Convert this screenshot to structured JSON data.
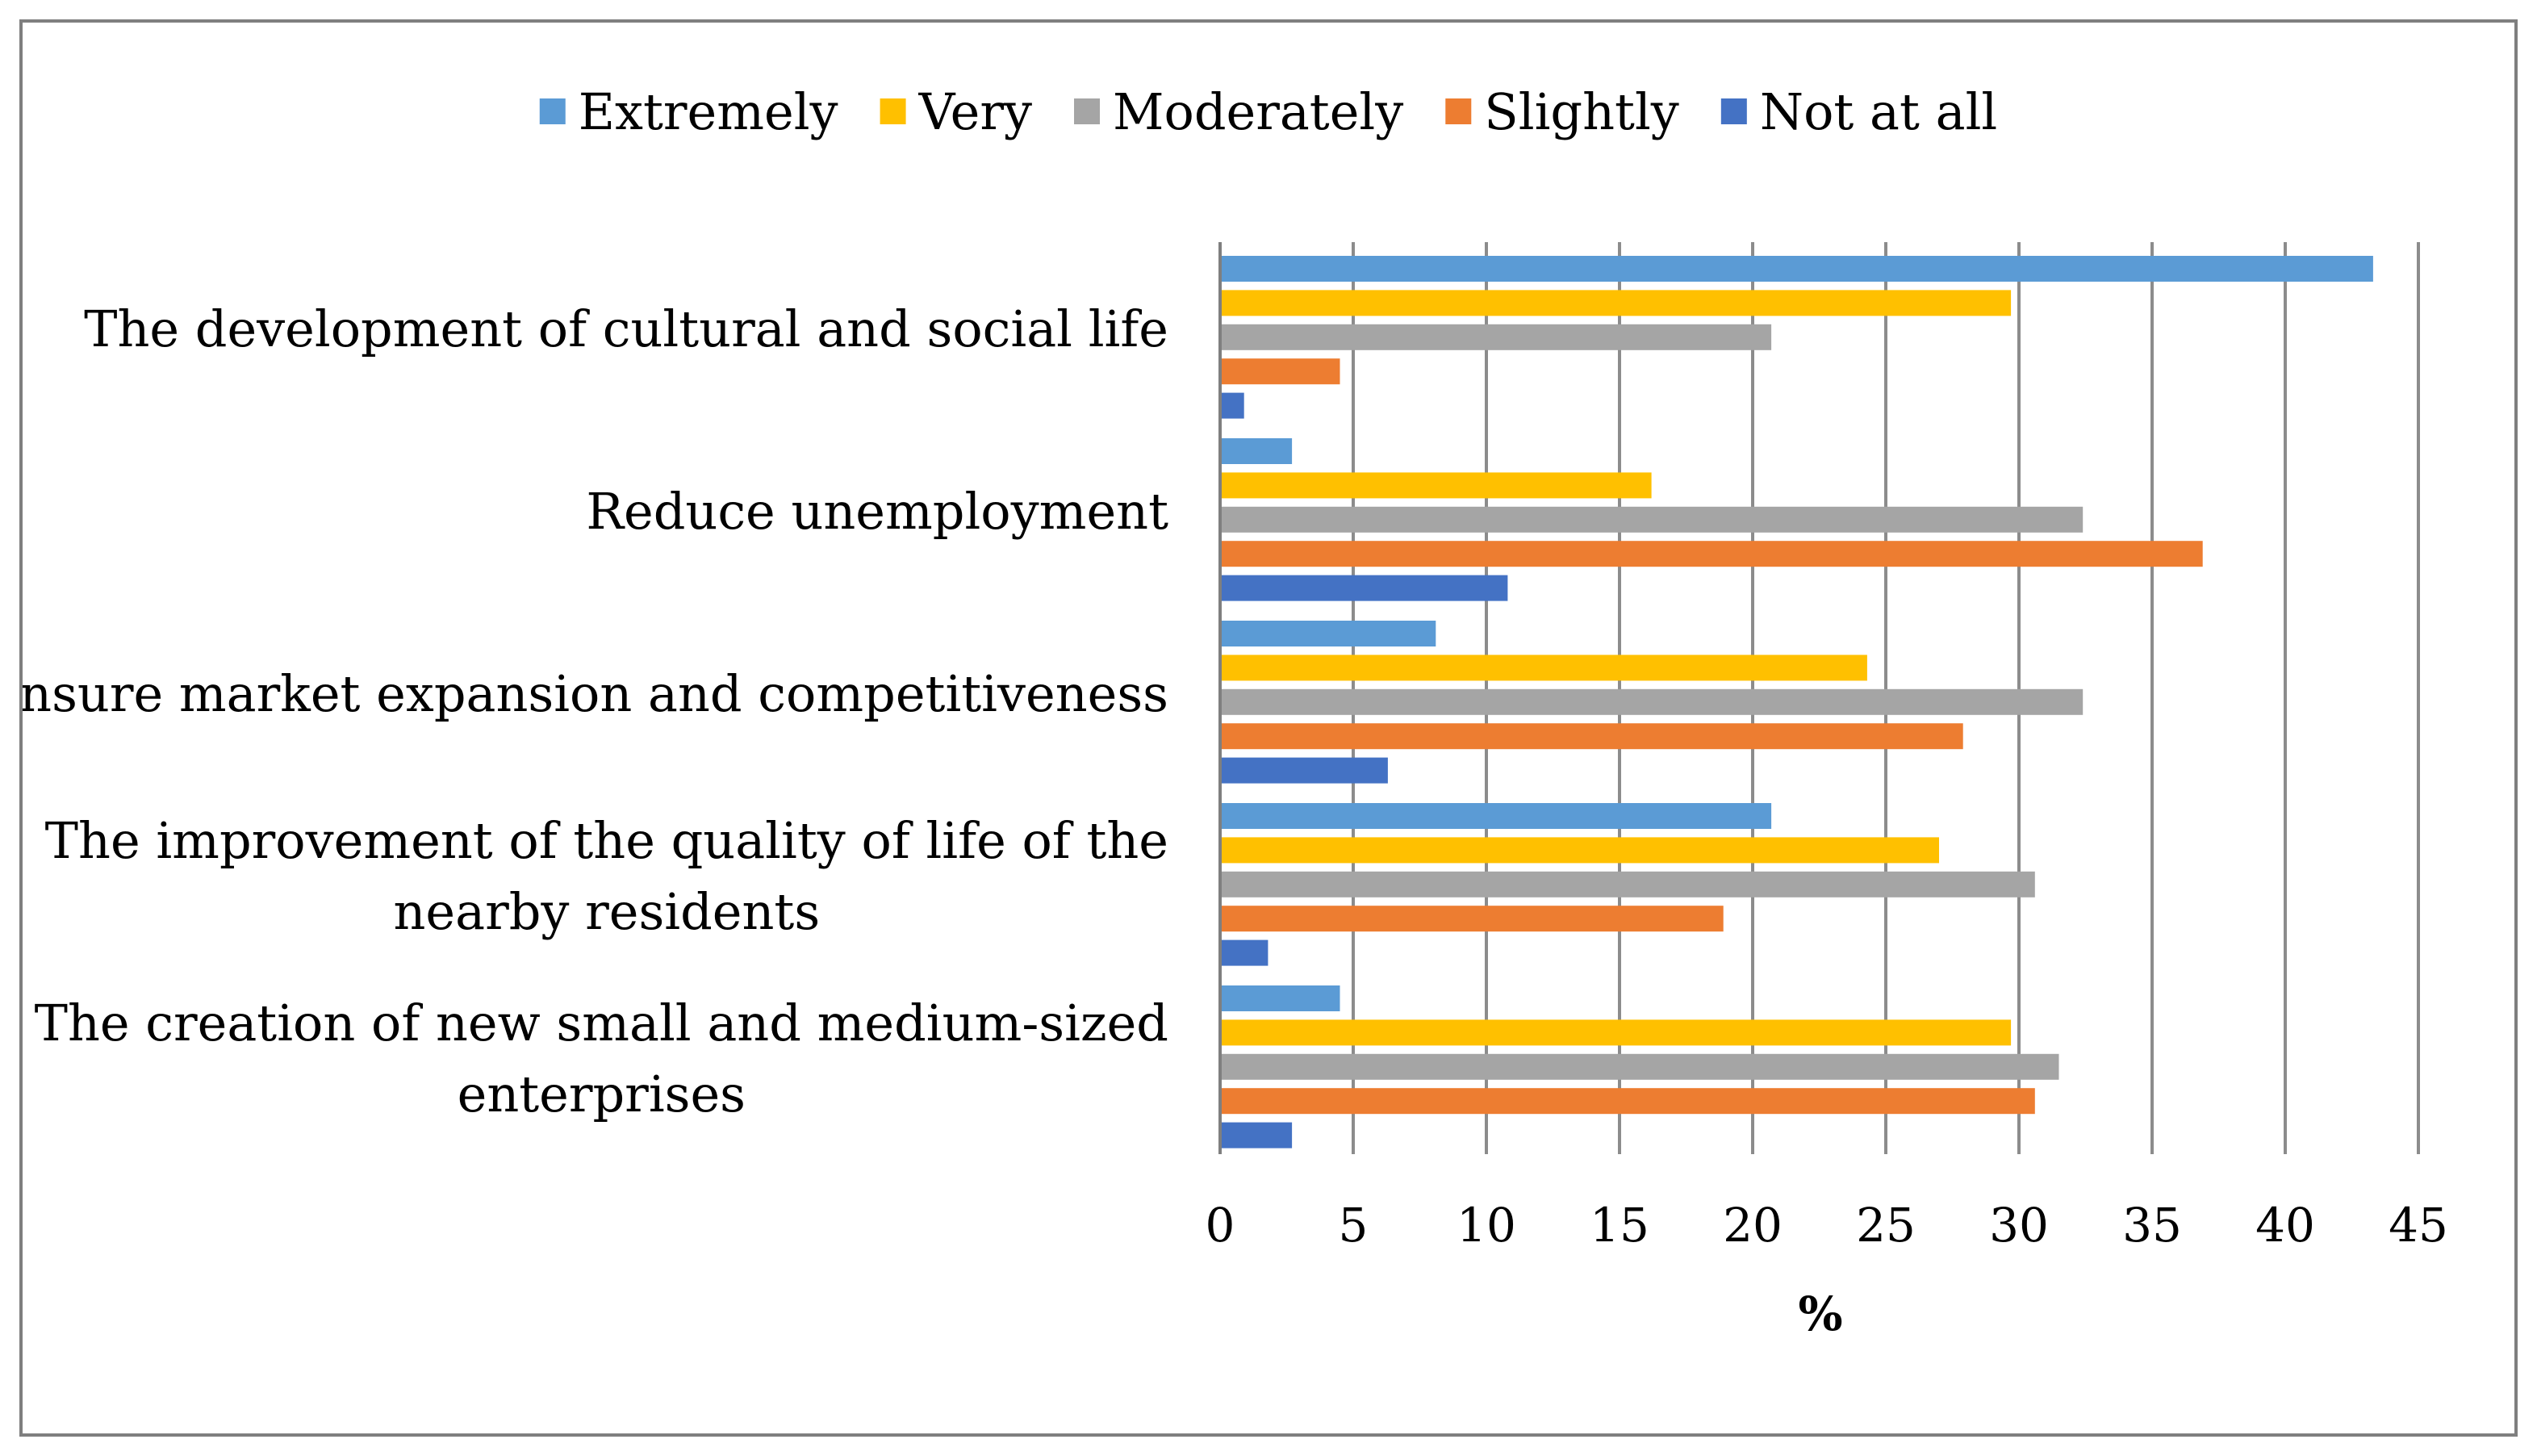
{
  "chart_data": {
    "type": "bar",
    "orientation": "horizontal",
    "title": "",
    "xlabel": "%",
    "ylabel": "",
    "xlim": [
      0,
      45
    ],
    "xticks": [
      0,
      5,
      10,
      15,
      20,
      25,
      30,
      35,
      40,
      45
    ],
    "grid": "vertical",
    "legend_position": "top",
    "categories": [
      {
        "lines": [
          "The development of cultural and social life"
        ]
      },
      {
        "lines": [
          "Reduce unemployment"
        ]
      },
      {
        "lines": [
          "Ensure market expansion and competitiveness"
        ]
      },
      {
        "lines": [
          "The improvement of the quality of life of the",
          "nearby residents"
        ]
      },
      {
        "lines": [
          "The creation of new small and medium-sized",
          "enterprises"
        ]
      }
    ],
    "series": [
      {
        "name": "Extremely",
        "color": "#5b9bd5",
        "values": [
          43.3,
          2.7,
          8.1,
          20.7,
          4.5
        ]
      },
      {
        "name": "Very",
        "color": "#ffc000",
        "values": [
          29.7,
          16.2,
          24.3,
          27.0,
          29.7
        ]
      },
      {
        "name": "Moderately",
        "color": "#a5a5a5",
        "values": [
          20.7,
          32.4,
          32.4,
          30.6,
          31.5
        ]
      },
      {
        "name": "Slightly",
        "color": "#ed7d31",
        "values": [
          4.5,
          36.9,
          27.9,
          18.9,
          30.6
        ]
      },
      {
        "name": "Not at all",
        "color": "#4472c4",
        "values": [
          0.9,
          10.8,
          6.3,
          1.8,
          2.7
        ]
      }
    ]
  }
}
